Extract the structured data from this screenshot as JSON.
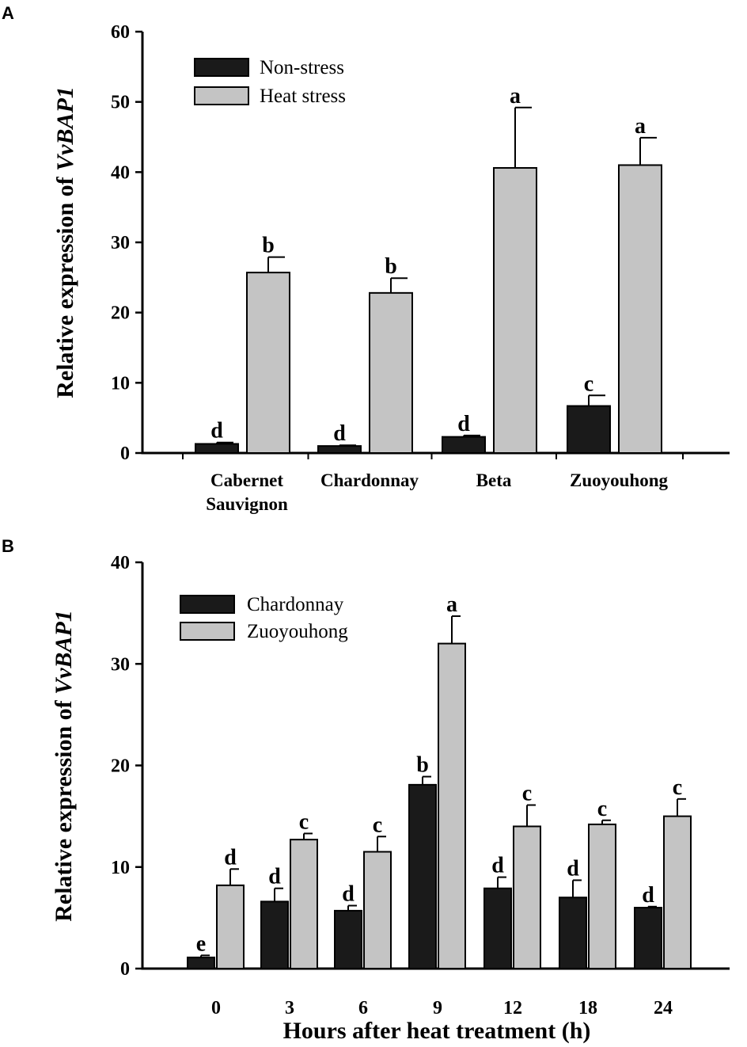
{
  "chart_data": [
    {
      "panel": "A",
      "type": "bar",
      "title": "",
      "xlabel": "",
      "ylabel_prefix": "Relative expression of ",
      "ylabel_gene": "VvBAP1",
      "ylim": [
        0,
        60
      ],
      "yticks": [
        0,
        10,
        20,
        30,
        40,
        50,
        60
      ],
      "categories": [
        [
          "Cabernet",
          "Sauvignon"
        ],
        [
          "Chardonnay"
        ],
        [
          "Beta"
        ],
        [
          "Zuoyouhong"
        ]
      ],
      "legend_position": "top-left",
      "series": [
        {
          "name": "Non-stress",
          "color": "#1a1a1a",
          "values": [
            1.3,
            1.0,
            2.3,
            6.7
          ],
          "errors": [
            0.2,
            0.1,
            0.2,
            1.5
          ],
          "letters": [
            "d",
            "d",
            "d",
            "c"
          ]
        },
        {
          "name": "Heat stress",
          "color": "#c4c4c4",
          "values": [
            25.7,
            22.8,
            40.6,
            41.0
          ],
          "errors": [
            2.2,
            2.1,
            8.6,
            3.9
          ],
          "letters": [
            "b",
            "b",
            "a",
            "a"
          ]
        }
      ]
    },
    {
      "panel": "B",
      "type": "bar",
      "title": "",
      "xlabel": "Hours after heat treatment (h)",
      "ylabel_prefix": "Relative expression of ",
      "ylabel_gene": "VvBAP1",
      "ylim": [
        0,
        40
      ],
      "yticks": [
        0,
        10,
        20,
        30,
        40
      ],
      "categories": [
        [
          "0"
        ],
        [
          "3"
        ],
        [
          "6"
        ],
        [
          "9"
        ],
        [
          "12"
        ],
        [
          "18"
        ],
        [
          "24"
        ]
      ],
      "legend_position": "top-left",
      "series": [
        {
          "name": "Chardonnay",
          "color": "#1a1a1a",
          "values": [
            1.1,
            6.6,
            5.7,
            18.1,
            7.9,
            7.0,
            6.0
          ],
          "errors": [
            0.2,
            1.3,
            0.5,
            0.8,
            1.1,
            1.7,
            0.1
          ],
          "letters": [
            "e",
            "d",
            "d",
            "b",
            "d",
            "d",
            "d"
          ]
        },
        {
          "name": "Zuoyouhong",
          "color": "#c4c4c4",
          "values": [
            8.2,
            12.7,
            11.5,
            32.0,
            14.0,
            14.2,
            15.0
          ],
          "errors": [
            1.6,
            0.6,
            1.5,
            2.7,
            2.1,
            0.4,
            1.7
          ],
          "letters": [
            "d",
            "c",
            "c",
            "a",
            "c",
            "c",
            "c"
          ]
        }
      ]
    }
  ]
}
